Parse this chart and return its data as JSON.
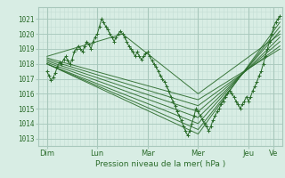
{
  "bg_color": "#d8ede4",
  "grid_color_minor": "#c4ddd5",
  "grid_color_major": "#a8c8bc",
  "line_color": "#2a6b2a",
  "xlabel": "Pression niveau de la mer( hPa )",
  "ylim": [
    1012.5,
    1021.8
  ],
  "yticks": [
    1013,
    1014,
    1015,
    1016,
    1017,
    1018,
    1019,
    1020,
    1021
  ],
  "xlim": [
    0,
    116
  ],
  "xtick_labels": [
    "Dim",
    "Lun",
    "Mar",
    "Mer",
    "Jeu",
    "Ve"
  ],
  "xtick_positions": [
    4,
    28,
    52,
    76,
    100,
    112
  ],
  "day_lines": [
    4,
    28,
    52,
    76,
    100,
    112
  ],
  "total_hours": 116,
  "main_line": [
    [
      4,
      1017.5
    ],
    [
      5,
      1017.2
    ],
    [
      6,
      1016.9
    ],
    [
      7,
      1017.1
    ],
    [
      8,
      1017.4
    ],
    [
      9,
      1017.8
    ],
    [
      10,
      1018.1
    ],
    [
      11,
      1018.0
    ],
    [
      12,
      1018.3
    ],
    [
      13,
      1018.5
    ],
    [
      14,
      1018.2
    ],
    [
      15,
      1018.0
    ],
    [
      16,
      1018.3
    ],
    [
      17,
      1018.8
    ],
    [
      18,
      1019.0
    ],
    [
      19,
      1019.2
    ],
    [
      20,
      1019.0
    ],
    [
      21,
      1018.8
    ],
    [
      22,
      1019.2
    ],
    [
      23,
      1019.5
    ],
    [
      24,
      1019.3
    ],
    [
      25,
      1019.0
    ],
    [
      26,
      1019.5
    ],
    [
      27,
      1019.8
    ],
    [
      28,
      1020.0
    ],
    [
      29,
      1020.5
    ],
    [
      30,
      1021.0
    ],
    [
      31,
      1020.8
    ],
    [
      32,
      1020.5
    ],
    [
      33,
      1020.3
    ],
    [
      34,
      1020.0
    ],
    [
      35,
      1019.8
    ],
    [
      36,
      1019.5
    ],
    [
      37,
      1019.8
    ],
    [
      38,
      1020.0
    ],
    [
      39,
      1020.2
    ],
    [
      40,
      1020.0
    ],
    [
      41,
      1019.8
    ],
    [
      42,
      1019.5
    ],
    [
      43,
      1019.2
    ],
    [
      44,
      1019.0
    ],
    [
      45,
      1018.8
    ],
    [
      46,
      1018.5
    ],
    [
      47,
      1018.8
    ],
    [
      48,
      1018.5
    ],
    [
      49,
      1018.3
    ],
    [
      50,
      1018.5
    ],
    [
      51,
      1018.7
    ],
    [
      52,
      1018.8
    ],
    [
      53,
      1018.5
    ],
    [
      54,
      1018.2
    ],
    [
      55,
      1018.0
    ],
    [
      56,
      1017.8
    ],
    [
      57,
      1017.5
    ],
    [
      58,
      1017.2
    ],
    [
      59,
      1017.0
    ],
    [
      60,
      1016.8
    ],
    [
      61,
      1016.5
    ],
    [
      62,
      1016.2
    ],
    [
      63,
      1015.8
    ],
    [
      64,
      1015.5
    ],
    [
      65,
      1015.2
    ],
    [
      66,
      1014.8
    ],
    [
      67,
      1014.5
    ],
    [
      68,
      1014.2
    ],
    [
      69,
      1013.8
    ],
    [
      70,
      1013.5
    ],
    [
      71,
      1013.2
    ],
    [
      72,
      1013.5
    ],
    [
      73,
      1014.0
    ],
    [
      74,
      1014.5
    ],
    [
      75,
      1015.0
    ],
    [
      76,
      1014.8
    ],
    [
      77,
      1014.5
    ],
    [
      78,
      1014.3
    ],
    [
      79,
      1014.0
    ],
    [
      80,
      1013.8
    ],
    [
      81,
      1013.5
    ],
    [
      82,
      1013.8
    ],
    [
      83,
      1014.2
    ],
    [
      84,
      1014.5
    ],
    [
      85,
      1014.8
    ],
    [
      86,
      1015.0
    ],
    [
      87,
      1015.3
    ],
    [
      88,
      1015.5
    ],
    [
      89,
      1015.8
    ],
    [
      90,
      1016.0
    ],
    [
      91,
      1016.2
    ],
    [
      92,
      1016.0
    ],
    [
      93,
      1015.8
    ],
    [
      94,
      1015.5
    ],
    [
      95,
      1015.3
    ],
    [
      96,
      1015.0
    ],
    [
      97,
      1015.3
    ],
    [
      98,
      1015.5
    ],
    [
      99,
      1015.8
    ],
    [
      100,
      1015.5
    ],
    [
      101,
      1015.8
    ],
    [
      102,
      1016.2
    ],
    [
      103,
      1016.5
    ],
    [
      104,
      1016.8
    ],
    [
      105,
      1017.2
    ],
    [
      106,
      1017.5
    ],
    [
      107,
      1018.0
    ],
    [
      108,
      1018.5
    ],
    [
      109,
      1019.0
    ],
    [
      110,
      1019.5
    ],
    [
      111,
      1020.0
    ],
    [
      112,
      1020.5
    ],
    [
      113,
      1020.8
    ],
    [
      114,
      1021.0
    ],
    [
      115,
      1021.2
    ]
  ],
  "forecast_lines": [
    [
      [
        4,
        1018.0
      ],
      [
        76,
        1013.3
      ],
      [
        115,
        1020.8
      ]
    ],
    [
      [
        4,
        1018.0
      ],
      [
        76,
        1013.6
      ],
      [
        115,
        1020.5
      ]
    ],
    [
      [
        4,
        1018.0
      ],
      [
        76,
        1014.0
      ],
      [
        115,
        1020.2
      ]
    ],
    [
      [
        4,
        1018.1
      ],
      [
        76,
        1014.4
      ],
      [
        115,
        1019.8
      ]
    ],
    [
      [
        4,
        1018.2
      ],
      [
        76,
        1014.8
      ],
      [
        115,
        1019.5
      ]
    ],
    [
      [
        4,
        1018.3
      ],
      [
        76,
        1015.2
      ],
      [
        115,
        1019.2
      ]
    ],
    [
      [
        4,
        1018.4
      ],
      [
        76,
        1015.6
      ],
      [
        115,
        1019.0
      ]
    ],
    [
      [
        4,
        1018.5
      ],
      [
        40,
        1020.0
      ],
      [
        76,
        1016.0
      ],
      [
        115,
        1020.0
      ]
    ]
  ]
}
